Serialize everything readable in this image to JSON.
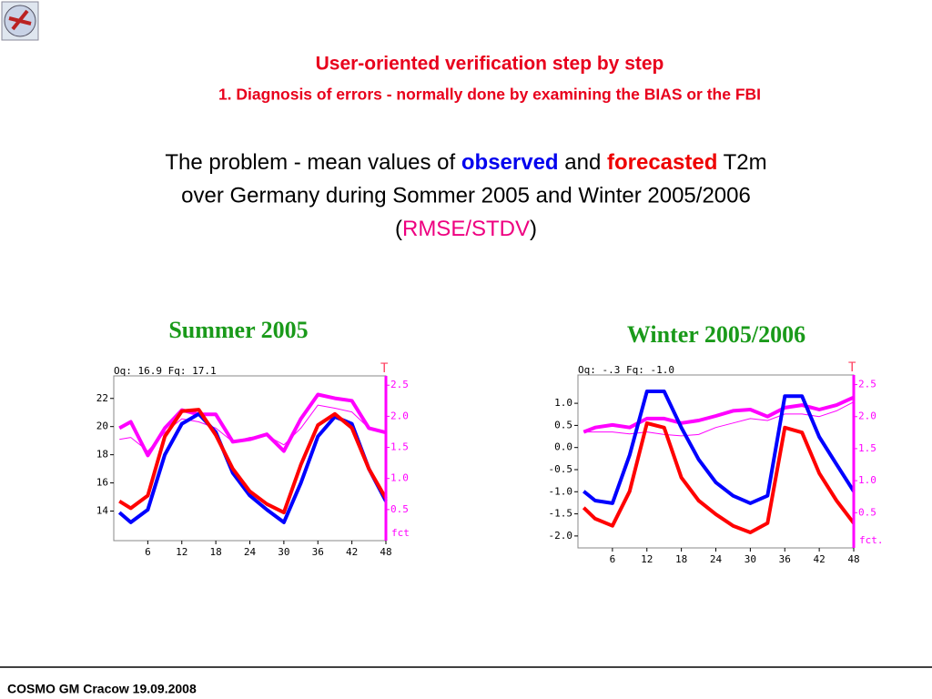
{
  "header": {
    "title": "User-oriented verification step by step",
    "subtitle": "1. Diagnosis of errors - normally done by examining the BIAS or the FBI"
  },
  "problem": {
    "line1": [
      "The problem - mean values of ",
      "observed",
      " and ",
      "forecasted",
      " T2m"
    ],
    "line2": "over Germany during Sommer 2005 and Winter  2005/2006",
    "line3": [
      "(",
      "RMSE/STDV",
      ")"
    ]
  },
  "footer": "COSMO GM Cracow 19.09.2008",
  "chart_data": [
    {
      "type": "line",
      "title": "Summer 2005",
      "header": "Oq:   16.9 Fq:   17.1",
      "y2_label": "T",
      "y2_footer": "fct",
      "x": [
        1,
        3,
        6,
        9,
        12,
        15,
        18,
        21,
        24,
        27,
        30,
        33,
        36,
        39,
        42,
        45,
        48
      ],
      "xlim": [
        0,
        48
      ],
      "xticks": [
        6,
        12,
        18,
        24,
        30,
        36,
        42,
        48
      ],
      "ylim": [
        11.9,
        23.6
      ],
      "yticks": [
        14,
        16,
        18,
        20,
        22
      ],
      "y2lim": [
        0,
        2.65
      ],
      "y2ticks": [
        0.5,
        {
          "value": 1,
          "label": "1.0"
        },
        1.5,
        {
          "value": 2,
          "label": "2.0"
        },
        2.5
      ],
      "y2_color": "#ff00ff",
      "series": [
        {
          "color": "#ff00ff",
          "width": 4,
          "axis": "y2",
          "values": [
            1.81,
            1.91,
            1.37,
            1.81,
            2.1,
            2.03,
            2.03,
            1.59,
            1.63,
            1.71,
            1.44,
            1.96,
            2.35,
            2.29,
            2.25,
            1.81,
            1.74
          ]
        },
        {
          "color": "#ff00ff",
          "width": 1,
          "axis": "y2",
          "values": [
            1.63,
            1.66,
            1.44,
            1.74,
            1.96,
            1.91,
            1.81,
            1.59,
            1.66,
            1.69,
            1.54,
            1.81,
            2.18,
            2.13,
            2.07,
            1.81,
            1.74
          ]
        },
        {
          "color": "#0000ff",
          "width": 4,
          "values": [
            13.9,
            13.2,
            14.1,
            18.0,
            20.2,
            20.9,
            19.6,
            16.7,
            15.1,
            14.1,
            13.2,
            16.0,
            19.3,
            20.7,
            20.2,
            17.0,
            14.7
          ]
        },
        {
          "color": "#ff0000",
          "width": 4,
          "values": [
            14.7,
            14.2,
            15.1,
            19.3,
            21.1,
            21.2,
            19.4,
            17.0,
            15.4,
            14.5,
            13.9,
            17.3,
            20.1,
            20.9,
            19.9,
            17.0,
            14.9
          ]
        }
      ]
    },
    {
      "type": "line",
      "title": "Winter 2005/2006",
      "header": "Oq:   -.3 Fq:   -1.0",
      "y2_label": "T",
      "y2_footer": "fct.",
      "x": [
        1,
        3,
        6,
        9,
        12,
        15,
        18,
        21,
        24,
        27,
        30,
        33,
        36,
        39,
        42,
        45,
        48
      ],
      "xlim": [
        0,
        48
      ],
      "xticks": [
        6,
        12,
        18,
        24,
        30,
        36,
        42,
        48
      ],
      "ylim": [
        -2.27,
        1.64
      ],
      "yticks": [
        {
          "value": 1,
          "label": "1.0"
        },
        0.5,
        {
          "value": 0,
          "label": "0.0"
        },
        -0.5,
        {
          "value": -1,
          "label": "-1.0"
        },
        -1.5,
        {
          "value": -2,
          "label": "-2.0"
        }
      ],
      "y2lim": [
        -0.05,
        2.65
      ],
      "y2ticks": [
        0.5,
        {
          "value": 1,
          "label": "1.0"
        },
        1.5,
        {
          "value": 2,
          "label": "2.0"
        },
        2.5
      ],
      "y2_color": "#ff00ff",
      "series": [
        {
          "color": "#ff00ff",
          "width": 4,
          "axis": "y2",
          "values": [
            1.76,
            1.83,
            1.87,
            1.83,
            1.97,
            1.97,
            1.9,
            1.94,
            2.01,
            2.09,
            2.11,
            2.0,
            2.14,
            2.18,
            2.11,
            2.18,
            2.3
          ]
        },
        {
          "color": "#ff00ff",
          "width": 1,
          "axis": "y2",
          "values": [
            1.76,
            1.76,
            1.76,
            1.73,
            1.76,
            1.72,
            1.7,
            1.72,
            1.83,
            1.9,
            1.97,
            1.94,
            2.04,
            2.04,
            2.0,
            2.09,
            2.23
          ]
        },
        {
          "color": "#0000ff",
          "width": 4,
          "values": [
            -0.99,
            -1.2,
            -1.26,
            -0.17,
            1.27,
            1.27,
            0.45,
            -0.27,
            -0.79,
            -1.09,
            -1.26,
            -1.09,
            1.16,
            1.16,
            0.24,
            -0.38,
            -0.99
          ]
        },
        {
          "color": "#ff0000",
          "width": 4,
          "values": [
            -1.36,
            -1.61,
            -1.77,
            -0.99,
            0.55,
            0.45,
            -0.68,
            -1.2,
            -1.51,
            -1.77,
            -1.92,
            -1.71,
            0.45,
            0.34,
            -0.58,
            -1.2,
            -1.71
          ]
        }
      ]
    }
  ]
}
